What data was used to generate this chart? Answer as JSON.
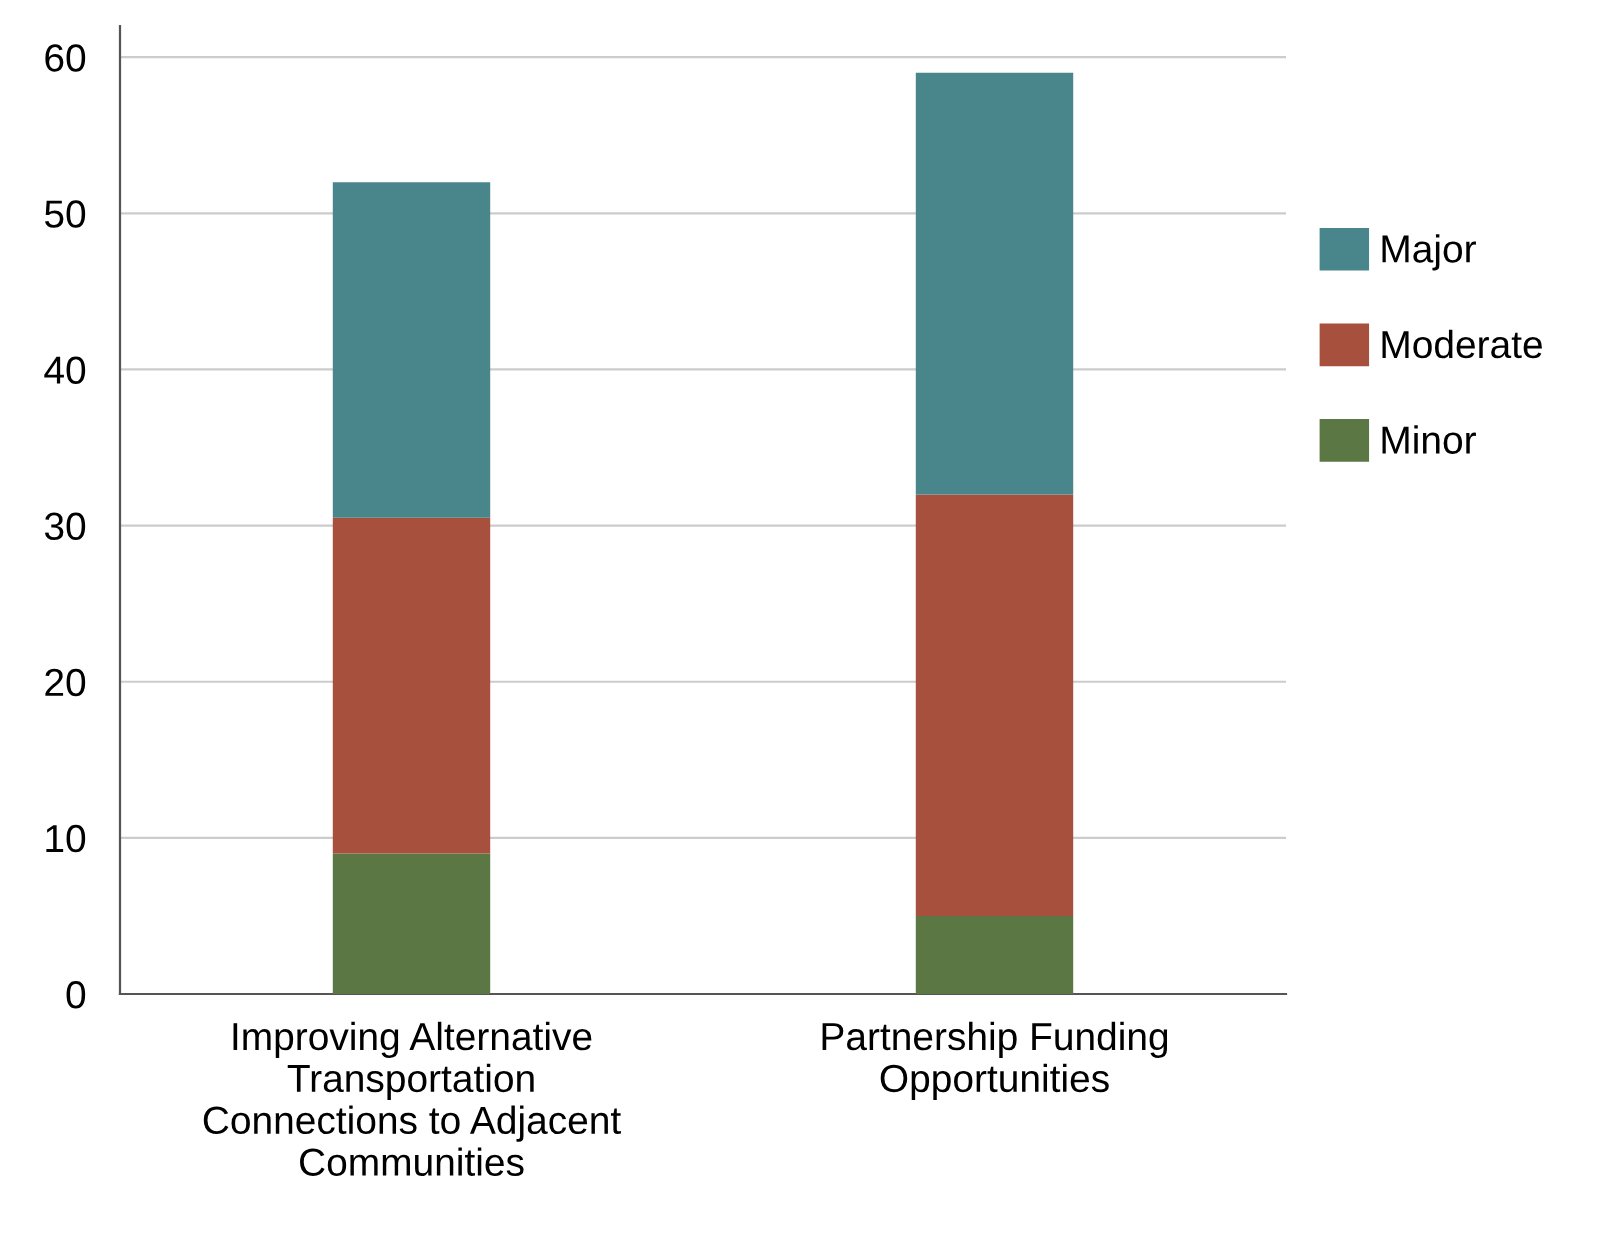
{
  "chart_data": {
    "type": "bar",
    "stacked": true,
    "categories": [
      "Improving Alternative\nTransportation\nConnections to Adjacent\nCommunities",
      "Partnership Funding\nOpportunities"
    ],
    "series": [
      {
        "name": "Minor",
        "color": "#5b7744",
        "values": [
          9,
          5
        ]
      },
      {
        "name": "Moderate",
        "color": "#a8503e",
        "values": [
          21.5,
          27
        ]
      },
      {
        "name": "Major",
        "color": "#48868c",
        "values": [
          21.5,
          27
        ]
      }
    ],
    "ylim": [
      0,
      62
    ],
    "yticks": [
      0,
      10,
      20,
      30,
      40,
      50,
      60
    ],
    "grid": "y",
    "legend": "right"
  }
}
